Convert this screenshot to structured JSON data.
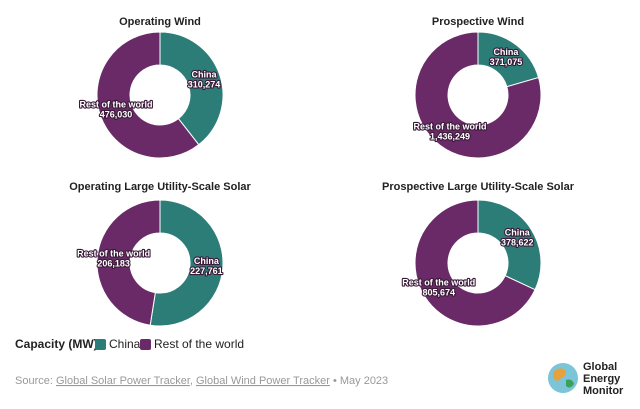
{
  "chart_data": [
    {
      "type": "donut",
      "title": "Operating Wind",
      "categories": [
        "China",
        "Rest of the world"
      ],
      "values": [
        310274,
        476030
      ],
      "value_labels": [
        "310,274",
        "476,030"
      ],
      "colors": [
        "#2c7d78",
        "#6a2a67"
      ]
    },
    {
      "type": "donut",
      "title": "Prospective Wind",
      "categories": [
        "China",
        "Rest of the world"
      ],
      "values": [
        371075,
        1436249
      ],
      "value_labels": [
        "371,075",
        "1,436,249"
      ],
      "colors": [
        "#2c7d78",
        "#6a2a67"
      ]
    },
    {
      "type": "donut",
      "title": "Operating Large Utility-Scale Solar",
      "categories": [
        "China",
        "Rest of the world"
      ],
      "values": [
        227761,
        206183
      ],
      "value_labels": [
        "227,761",
        "206,183"
      ],
      "colors": [
        "#2c7d78",
        "#6a2a67"
      ]
    },
    {
      "type": "donut",
      "title": "Prospective Large Utility-Scale Solar",
      "categories": [
        "China",
        "Rest of the world"
      ],
      "values": [
        378622,
        805674
      ],
      "value_labels": [
        "378,622",
        "805,674"
      ],
      "colors": [
        "#2c7d78",
        "#6a2a67"
      ]
    }
  ],
  "legend_title": "Capacity (MW):",
  "source": [
    "Source:",
    "Global Solar Power Tracker",
    ",",
    "Global Wind Power Tracker",
    "• May 2023"
  ],
  "logo": [
    "Global",
    "Energy",
    "Monitor"
  ]
}
